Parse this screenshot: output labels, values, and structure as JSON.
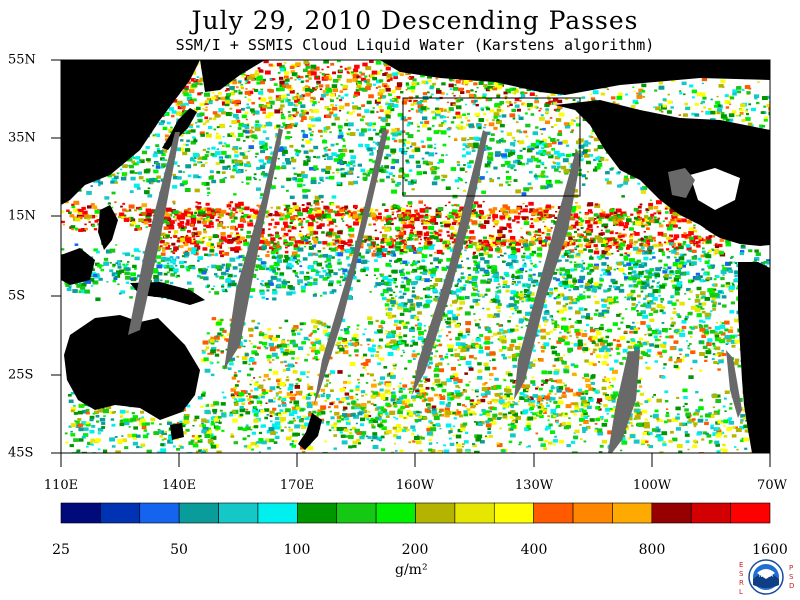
{
  "header": {
    "title": "July 29, 2010  Descending Passes",
    "subtitle": "SSM/I + SSMIS Cloud Liquid Water (Karstens algorithm)"
  },
  "map": {
    "lat_labels": [
      "55N",
      "35N",
      "15N",
      "5S",
      "25S",
      "45S"
    ],
    "lon_labels": [
      "110E",
      "140E",
      "170E",
      "160W",
      "130W",
      "100W",
      "70W"
    ],
    "land_color": "#000000",
    "no_data_color": "#696969",
    "ocean_clear_color": "#ffffff"
  },
  "colorbar": {
    "colors": [
      "#000a7a",
      "#0033b4",
      "#1464f0",
      "#0a9b9b",
      "#14c8c8",
      "#00f0f0",
      "#009600",
      "#14c814",
      "#00f000",
      "#b4b400",
      "#e6e600",
      "#ffff00",
      "#ff5a00",
      "#ff8700",
      "#ffaa00",
      "#960000",
      "#d20000",
      "#ff0000"
    ],
    "tick_labels": [
      "25",
      "50",
      "100",
      "200",
      "400",
      "800",
      "1600"
    ],
    "unit_label": "g/m²"
  },
  "logo": {
    "left_letters": "ESRL",
    "right_letters": "PSD",
    "center_text": "NOAA"
  }
}
